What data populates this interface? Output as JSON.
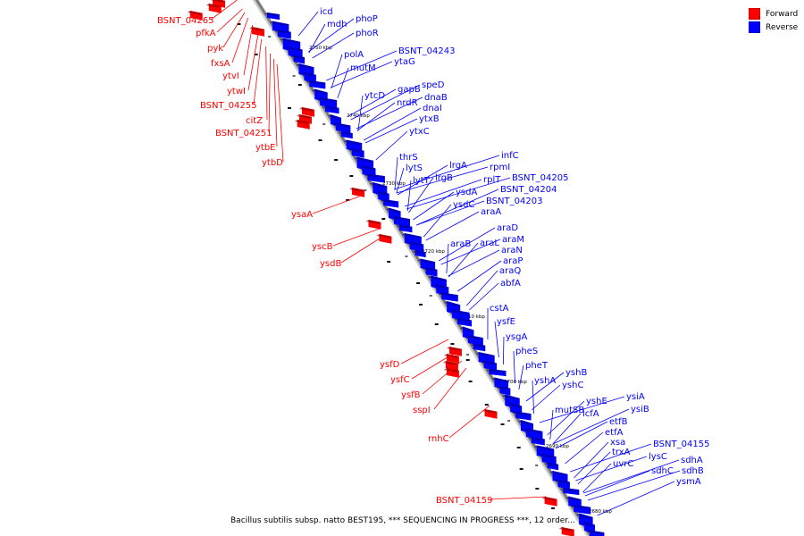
{
  "legend": {
    "forward_label": "Forward",
    "reverse_label": "Reverse",
    "forward_color": "#ff0000",
    "reverse_color": "#0000ff"
  },
  "colors": {
    "forward": "#ff0000",
    "reverse": "#0000ff",
    "axis": "#888888"
  },
  "caption": "Bacillus subtilis subsp. natto BEST195, *** SEQUENCING IN PROGRESS ***, 12 order...",
  "axis_ticks": [
    "2750 kbp",
    "2740 kbp",
    "2730 kbp",
    "2720 kbp",
    "2710 kbp",
    "2700 kbp",
    "2690 kbp",
    "2680 kbp"
  ],
  "reverse_genes": [
    "icd",
    "mdh",
    "phoP",
    "phoR",
    "BSNT_04243",
    "polA",
    "ytaG",
    "mutM",
    "speD",
    "gapB",
    "dnaB",
    "ytcD",
    "nrdR",
    "dnaI",
    "ytxB",
    "ytxC",
    "thrS",
    "lytS",
    "lrgA",
    "infC",
    "rpmI",
    "lytT",
    "lrgB",
    "rplT",
    "BSNT_04205",
    "BSNT_04204",
    "ysdA",
    "ysdC",
    "BSNT_04203",
    "araA",
    "araD",
    "araM",
    "araB",
    "araL",
    "araN",
    "araP",
    "araQ",
    "abfA",
    "cstA",
    "ysfE",
    "ysgA",
    "pheS",
    "pheT",
    "yshB",
    "yshA",
    "yshC",
    "mutSB",
    "yshE",
    "ysiA",
    "lcfA",
    "ysiB",
    "etfB",
    "etfA",
    "xsa",
    "BSNT_04155",
    "trxA",
    "lysC",
    "uvrC",
    "sdhA",
    "sdhC",
    "sdhB",
    "ysmA"
  ],
  "forward_genes": [
    "BSNT_04265",
    "pfkA",
    "pyk",
    "fxsA",
    "ytvI",
    "ytwI",
    "BSNT_04255",
    "citZ",
    "BSNT_04251",
    "ytbE",
    "ytbD",
    "ysaA",
    "yscB",
    "ysdB",
    "ysfD",
    "ysfC",
    "ysfB",
    "sspI",
    "rnhC",
    "BSNT_04159"
  ]
}
